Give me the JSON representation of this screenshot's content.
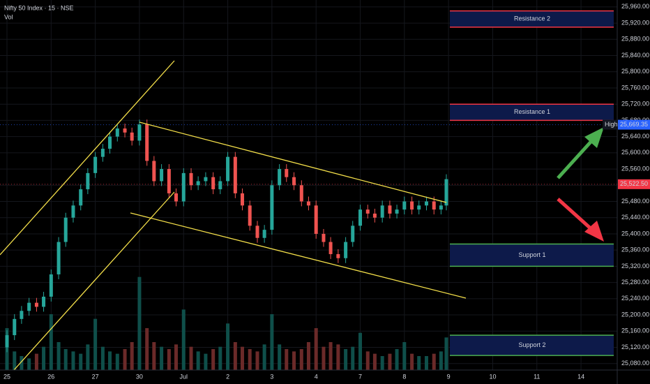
{
  "chart_data": {
    "type": "candlestick",
    "title": "Nifty 50 Index · 15 · NSE",
    "subtitle": "Vol",
    "grid": true,
    "up_color": "#26a69a",
    "down_color": "#ef5350",
    "volume_up_color": "#0f4f4a",
    "volume_down_color": "#6b2a29",
    "xlim": [
      -0.158,
      13.82
    ],
    "xticks": [
      {
        "value": 0,
        "label": "25"
      },
      {
        "value": 1,
        "label": "26"
      },
      {
        "value": 2,
        "label": "27"
      },
      {
        "value": 3,
        "label": "30"
      },
      {
        "value": 4,
        "label": "Jul"
      },
      {
        "value": 5,
        "label": "2"
      },
      {
        "value": 6,
        "label": "3"
      },
      {
        "value": 7,
        "label": "4"
      },
      {
        "value": 8,
        "label": "7"
      },
      {
        "value": 9,
        "label": "8"
      },
      {
        "value": 10,
        "label": "9"
      },
      {
        "value": 11,
        "label": "10"
      },
      {
        "value": 12,
        "label": "11"
      },
      {
        "value": 13,
        "label": "14"
      }
    ],
    "ylim": [
      25064,
      25977
    ],
    "yticks": [
      {
        "value": 25080,
        "label": "25,080.00"
      },
      {
        "value": 25120,
        "label": "25,120.00"
      },
      {
        "value": 25160,
        "label": "25,160.00"
      },
      {
        "value": 25200,
        "label": "25,200.00"
      },
      {
        "value": 25240,
        "label": "25,240.00"
      },
      {
        "value": 25280,
        "label": "25,280.00"
      },
      {
        "value": 25320,
        "label": "25,320.00"
      },
      {
        "value": 25360,
        "label": "25,360.00"
      },
      {
        "value": 25400,
        "label": "25,400.00"
      },
      {
        "value": 25440,
        "label": "25,440.00"
      },
      {
        "value": 25480,
        "label": "25,480.00"
      },
      {
        "value": 25520,
        "label": "25,520.00"
      },
      {
        "value": 25560,
        "label": "25,560.00"
      },
      {
        "value": 25600,
        "label": "25,600.00"
      },
      {
        "value": 25640,
        "label": "25,640.00"
      },
      {
        "value": 25680,
        "label": "25,680.00"
      },
      {
        "value": 25720,
        "label": "25,720.00"
      },
      {
        "value": 25760,
        "label": "25,760.00"
      },
      {
        "value": 25800,
        "label": "25,800.00"
      },
      {
        "value": 25840,
        "label": "25,840.00"
      },
      {
        "value": 25880,
        "label": "25,880.00"
      },
      {
        "value": 25920,
        "label": "25,920.00"
      },
      {
        "value": 25960,
        "label": "25,960.00"
      }
    ],
    "x": [
      0,
      0.17,
      0.33,
      0.5,
      0.67,
      0.83,
      1,
      1.17,
      1.33,
      1.5,
      1.67,
      1.83,
      2,
      2.17,
      2.33,
      2.5,
      2.67,
      2.83,
      3,
      3.17,
      3.33,
      3.5,
      3.67,
      3.83,
      4,
      4.17,
      4.33,
      4.5,
      4.67,
      4.83,
      5,
      5.17,
      5.33,
      5.5,
      5.67,
      5.83,
      6,
      6.17,
      6.33,
      6.5,
      6.67,
      6.83,
      7,
      7.17,
      7.33,
      7.5,
      7.67,
      7.83,
      8,
      8.17,
      8.33,
      8.5,
      8.67,
      8.83,
      9,
      9.17,
      9.33,
      9.5,
      9.67,
      9.83,
      9.95
    ],
    "open": [
      25120,
      25150,
      25190,
      25210,
      25230,
      25220,
      25245,
      25300,
      25380,
      25440,
      25470,
      25510,
      25550,
      25590,
      25610,
      25640,
      25660,
      25650,
      25630,
      25670,
      25580,
      25530,
      25560,
      25500,
      25480,
      25550,
      25520,
      25530,
      25540,
      25510,
      25530,
      25590,
      25500,
      25470,
      25420,
      25390,
      25410,
      25520,
      25560,
      25540,
      25520,
      25480,
      25470,
      25400,
      25380,
      25350,
      25340,
      25380,
      25420,
      25460,
      25450,
      25440,
      25470,
      25450,
      25460,
      25480,
      25460,
      25470,
      25480,
      25460,
      25470
    ],
    "high": [
      25162,
      25202,
      25222,
      25242,
      25242,
      25257,
      25312,
      25392,
      25452,
      25482,
      25522,
      25562,
      25602,
      25622,
      25652,
      25672,
      25672,
      25662,
      25682,
      25682,
      25592,
      25572,
      25572,
      25512,
      25562,
      25562,
      25542,
      25552,
      25552,
      25542,
      25602,
      25602,
      25512,
      25482,
      25432,
      25422,
      25532,
      25572,
      25572,
      25552,
      25532,
      25492,
      25482,
      25412,
      25392,
      25362,
      25392,
      25432,
      25472,
      25472,
      25462,
      25482,
      25482,
      25472,
      25492,
      25492,
      25482,
      25492,
      25492,
      25482,
      25547
    ],
    "low": [
      25108,
      25138,
      25178,
      25198,
      25208,
      25208,
      25233,
      25288,
      25368,
      25428,
      25458,
      25498,
      25538,
      25578,
      25598,
      25628,
      25638,
      25618,
      25618,
      25568,
      25518,
      25518,
      25488,
      25468,
      25468,
      25508,
      25508,
      25518,
      25498,
      25498,
      25518,
      25488,
      25458,
      25408,
      25378,
      25378,
      25398,
      25508,
      25528,
      25508,
      25468,
      25458,
      25388,
      25368,
      25338,
      25328,
      25328,
      25368,
      25408,
      25438,
      25428,
      25428,
      25438,
      25438,
      25448,
      25448,
      25448,
      25458,
      25448,
      25448,
      25458
    ],
    "close": [
      25150,
      25190,
      25210,
      25230,
      25220,
      25245,
      25300,
      25380,
      25440,
      25470,
      25510,
      25550,
      25590,
      25610,
      25640,
      25660,
      25650,
      25630,
      25670,
      25580,
      25530,
      25560,
      25500,
      25480,
      25550,
      25520,
      25530,
      25540,
      25510,
      25530,
      25590,
      25500,
      25470,
      25420,
      25390,
      25410,
      25520,
      25560,
      25540,
      25520,
      25480,
      25470,
      25400,
      25380,
      25350,
      25340,
      25380,
      25420,
      25460,
      25450,
      25440,
      25470,
      25450,
      25460,
      25480,
      25460,
      25470,
      25480,
      25460,
      25470,
      25535
    ],
    "volume": [
      90,
      40,
      30,
      25,
      35,
      50,
      120,
      60,
      45,
      40,
      35,
      55,
      110,
      50,
      40,
      35,
      45,
      60,
      200,
      90,
      60,
      50,
      45,
      55,
      130,
      50,
      40,
      35,
      45,
      50,
      100,
      60,
      50,
      45,
      40,
      55,
      120,
      55,
      45,
      40,
      45,
      60,
      90,
      50,
      60,
      55,
      45,
      50,
      80,
      40,
      35,
      30,
      35,
      45,
      60,
      35,
      30,
      30,
      35,
      40,
      70
    ],
    "vlim": [
      0,
      330
    ],
    "price_labels": [
      {
        "name": "High",
        "value": 25669.35,
        "label": "25,669.35",
        "color": "#2962ff"
      },
      {
        "value": 25522.5,
        "label": "25,522.50",
        "color": "#f23645"
      }
    ],
    "zones": [
      {
        "label": "Resistance 2",
        "from": 25910,
        "to": 25950,
        "edge": "#f23645",
        "text_color": "#f23645"
      },
      {
        "label": "Resistance 1",
        "from": 25680,
        "to": 25720,
        "edge": "#f23645",
        "text_color": "#f23645"
      },
      {
        "label": "Support 1",
        "from": 25320,
        "to": 25375,
        "edge": "#4caf50",
        "text_color": "#4caf50"
      },
      {
        "label": "Support 2",
        "from": 25100,
        "to": 25150,
        "edge": "#4caf50",
        "text_color": "#4caf50"
      }
    ]
  }
}
